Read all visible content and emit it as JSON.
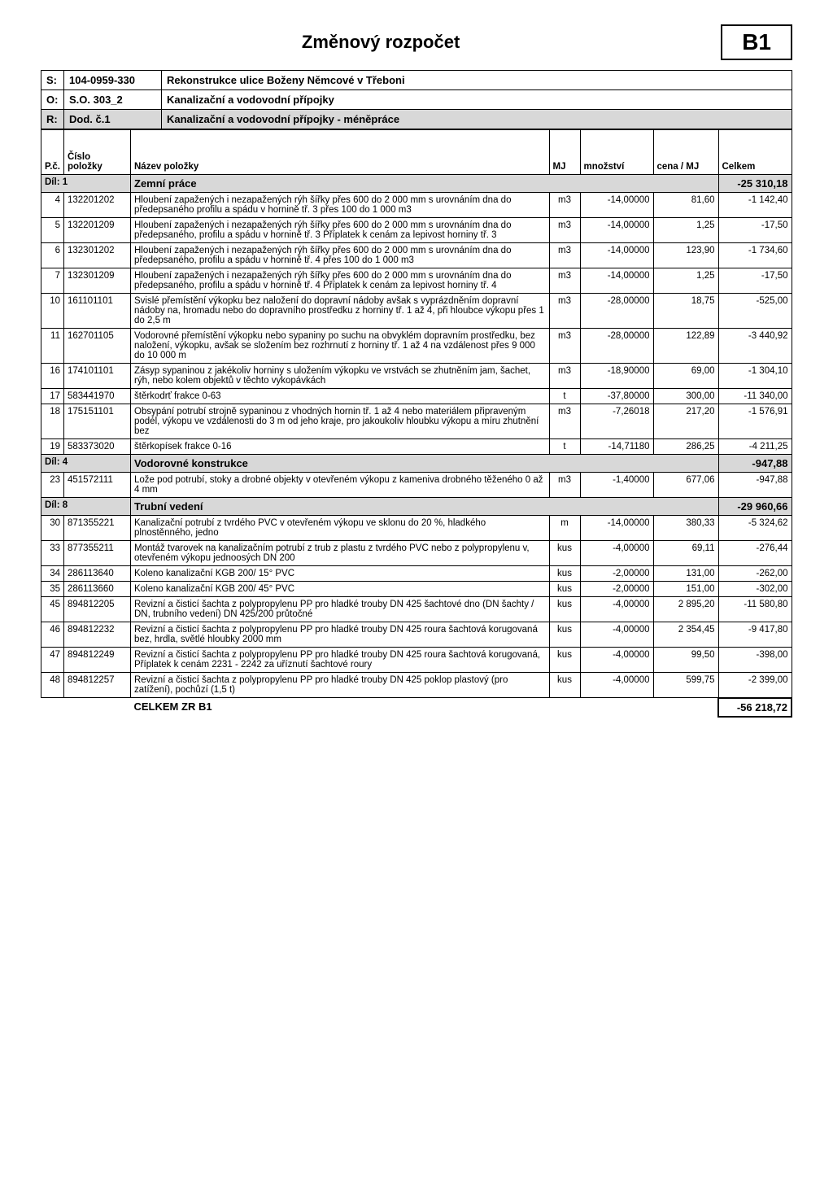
{
  "doc": {
    "title": "Změnový rozpočet",
    "badge": "B1"
  },
  "header": {
    "s_label": "S:",
    "s_code": "104-0959-330",
    "s_desc": "Rekonstrukce ulice Boženy Němcové v Třeboni",
    "o_label": "O:",
    "o_code": "S.O. 303_2",
    "o_desc": "Kanalizační a vodovodní přípojky",
    "r_label": "R:",
    "r_code": "Dod. č.1",
    "r_desc": "Kanalizační a vodovodní přípojky - méněpráce"
  },
  "columns": {
    "pc": "P.č.",
    "code": "Číslo položky",
    "name": "Název položky",
    "mj": "MJ",
    "qty": "množství",
    "price": "cena / MJ",
    "total": "Celkem"
  },
  "sections": [
    {
      "id": "Díl: 1",
      "name": "Zemní práce",
      "subtotal": "-25 310,18",
      "rows": [
        {
          "pc": "4",
          "code": "132201202",
          "name": "Hloubení zapažených i nezapažených rýh šířky přes 600 do 2 000 mm s urovnáním dna do předepsaného profilu a spádu v hornině tř. 3 přes 100 do 1 000 m3",
          "mj": "m3",
          "qty": "-14,00000",
          "price": "81,60",
          "total": "-1 142,40"
        },
        {
          "pc": "5",
          "code": "132201209",
          "name": "Hloubení zapažených i nezapažených rýh šířky přes 600 do 2 000 mm s urovnáním dna do předepsaného, profilu a spádu v hornině tř. 3 Příplatek k cenám za lepivost horniny tř. 3",
          "mj": "m3",
          "qty": "-14,00000",
          "price": "1,25",
          "total": "-17,50"
        },
        {
          "pc": "6",
          "code": "132301202",
          "name": "Hloubení zapažených i nezapažených rýh šířky přes 600 do 2 000 mm s urovnáním dna do předepsaného, profilu a spádu v hornině tř. 4 přes 100 do 1 000 m3",
          "mj": "m3",
          "qty": "-14,00000",
          "price": "123,90",
          "total": "-1 734,60"
        },
        {
          "pc": "7",
          "code": "132301209",
          "name": "Hloubení zapažených i nezapažených rýh šířky přes 600 do 2 000 mm s urovnáním dna do předepsaného, profilu a spádu v hornině tř. 4 Příplatek k cenám za lepivost horniny tř. 4",
          "mj": "m3",
          "qty": "-14,00000",
          "price": "1,25",
          "total": "-17,50"
        },
        {
          "pc": "10",
          "code": "161101101",
          "name": "Svislé přemístění výkopku bez naložení do dopravní nádoby avšak s vyprázdněním dopravní nádoby na, hromadu nebo do dopravního prostředku z horniny tř. 1 až 4, při hloubce výkopu přes 1 do 2,5 m",
          "mj": "m3",
          "qty": "-28,00000",
          "price": "18,75",
          "total": "-525,00"
        },
        {
          "pc": "11",
          "code": "162701105",
          "name": "Vodorovné přemístění výkopku nebo sypaniny po suchu na obvyklém dopravním prostředku, bez naložení, výkopku, avšak se složením bez rozhrnutí z horniny tř. 1 až 4 na vzdálenost přes 9 000 do 10 000 m",
          "mj": "m3",
          "qty": "-28,00000",
          "price": "122,89",
          "total": "-3 440,92"
        },
        {
          "pc": "16",
          "code": "174101101",
          "name": "Zásyp sypaninou z jakékoliv horniny s uložením výkopku ve vrstvách se zhutněním jam, šachet, rýh, nebo kolem objektů v těchto vykopávkách",
          "mj": "m3",
          "qty": "-18,90000",
          "price": "69,00",
          "total": "-1 304,10"
        },
        {
          "pc": "17",
          "code": "583441970",
          "name": "štěrkodrť frakce 0-63",
          "mj": "t",
          "qty": "-37,80000",
          "price": "300,00",
          "total": "-11 340,00"
        },
        {
          "pc": "18",
          "code": "175151101",
          "name": "Obsypání potrubí strojně sypaninou z vhodných hornin tř. 1 až 4 nebo materiálem připraveným podél, výkopu ve vzdálenosti do 3 m od jeho kraje, pro jakoukoliv hloubku výkopu a míru zhutnění bez",
          "mj": "m3",
          "qty": "-7,26018",
          "price": "217,20",
          "total": "-1 576,91"
        },
        {
          "pc": "19",
          "code": "583373020",
          "name": "štěrkopísek frakce 0-16",
          "mj": "t",
          "qty": "-14,71180",
          "price": "286,25",
          "total": "-4 211,25"
        }
      ]
    },
    {
      "id": "Díl: 4",
      "name": "Vodorovné konstrukce",
      "subtotal": "-947,88",
      "rows": [
        {
          "pc": "23",
          "code": "451572111",
          "name": "Lože pod potrubí, stoky a drobné objekty v otevřeném výkopu z kameniva drobného těženého 0 až 4 mm",
          "mj": "m3",
          "qty": "-1,40000",
          "price": "677,06",
          "total": "-947,88"
        }
      ]
    },
    {
      "id": "Díl: 8",
      "name": "Trubní vedení",
      "subtotal": "-29 960,66",
      "rows": [
        {
          "pc": "30",
          "code": "871355221",
          "name": "Kanalizační potrubí z tvrdého PVC v otevřeném výkopu ve sklonu do 20 %, hladkého plnostěnného, jedno",
          "mj": "m",
          "qty": "-14,00000",
          "price": "380,33",
          "total": "-5 324,62"
        },
        {
          "pc": "33",
          "code": "877355211",
          "name": "Montáž tvarovek na kanalizačním potrubí z trub z plastu z tvrdého PVC nebo z polypropylenu v, otevřeném výkopu jednoosých DN 200",
          "mj": "kus",
          "qty": "-4,00000",
          "price": "69,11",
          "total": "-276,44"
        },
        {
          "pc": "34",
          "code": "286113640",
          "name": "Koleno kanalizační KGB 200/ 15° PVC",
          "mj": "kus",
          "qty": "-2,00000",
          "price": "131,00",
          "total": "-262,00"
        },
        {
          "pc": "35",
          "code": "286113660",
          "name": "Koleno kanalizační KGB 200/ 45° PVC",
          "mj": "kus",
          "qty": "-2,00000",
          "price": "151,00",
          "total": "-302,00"
        },
        {
          "pc": "45",
          "code": "894812205",
          "name": "Revizní a čisticí šachta z polypropylenu PP pro hladké trouby DN 425 šachtové dno (DN šachty / DN, trubního vedení) DN 425/200 průtočné",
          "mj": "kus",
          "qty": "-4,00000",
          "price": "2 895,20",
          "total": "-11 580,80"
        },
        {
          "pc": "46",
          "code": "894812232",
          "name": "Revizní a čisticí šachta z polypropylenu PP pro hladké trouby DN 425 roura šachtová korugovaná bez, hrdla, světlé hloubky 2000 mm",
          "mj": "kus",
          "qty": "-4,00000",
          "price": "2 354,45",
          "total": "-9 417,80"
        },
        {
          "pc": "47",
          "code": "894812249",
          "name": "Revizní a čisticí šachta z polypropylenu PP pro hladké trouby DN 425 roura šachtová korugovaná, Příplatek k cenám 2231 - 2242 za uříznutí šachtové roury",
          "mj": "kus",
          "qty": "-4,00000",
          "price": "99,50",
          "total": "-398,00"
        },
        {
          "pc": "48",
          "code": "894812257",
          "name": "Revizní a čisticí šachta z polypropylenu PP pro hladké trouby DN 425 poklop plastový (pro zatížení), pochůzí (1,5 t)",
          "mj": "kus",
          "qty": "-4,00000",
          "price": "599,75",
          "total": "-2 399,00"
        }
      ]
    }
  ],
  "grand_total": {
    "label": "CELKEM ZR B1",
    "value": "-56 218,72"
  }
}
